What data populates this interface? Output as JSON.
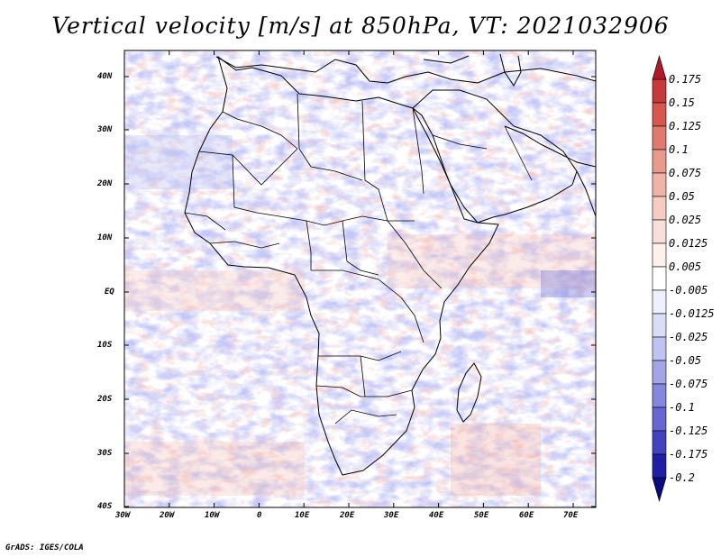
{
  "title": "Vertical velocity [m/s] at 850hPa, VT: 2021032906",
  "credit": "GrADS: IGES/COLA",
  "map": {
    "lat_labels": [
      "40N",
      "30N",
      "20N",
      "10N",
      "EQ",
      "10S",
      "20S",
      "30S",
      "40S"
    ],
    "lon_labels": [
      "30W",
      "20W",
      "10W",
      "0",
      "10E",
      "20E",
      "30E",
      "40E",
      "50E",
      "60E",
      "70E"
    ],
    "lat_range": [
      -40,
      45
    ],
    "lon_range": [
      -30,
      75
    ]
  },
  "colorbar": {
    "labels": [
      "0.175",
      "0.15",
      "0.125",
      "0.1",
      "0.075",
      "0.05",
      "0.025",
      "0.0125",
      "0.005",
      "-0.005",
      "-0.0125",
      "-0.025",
      "-0.05",
      "-0.075",
      "-0.1",
      "-0.125",
      "-0.175",
      "-0.2"
    ],
    "colors": [
      "#b2182b",
      "#c73a3a",
      "#d6574f",
      "#e07a6e",
      "#e89a8c",
      "#efb4a8",
      "#f5cbc2",
      "#f9dfd9",
      "#fdf0ed",
      "#ffffff",
      "#eef0fb",
      "#d9ddf6",
      "#bfc3ef",
      "#a3a6e6",
      "#8487dc",
      "#6468d0",
      "#4144bd",
      "#1f1fa3",
      "#0a0a80"
    ]
  }
}
